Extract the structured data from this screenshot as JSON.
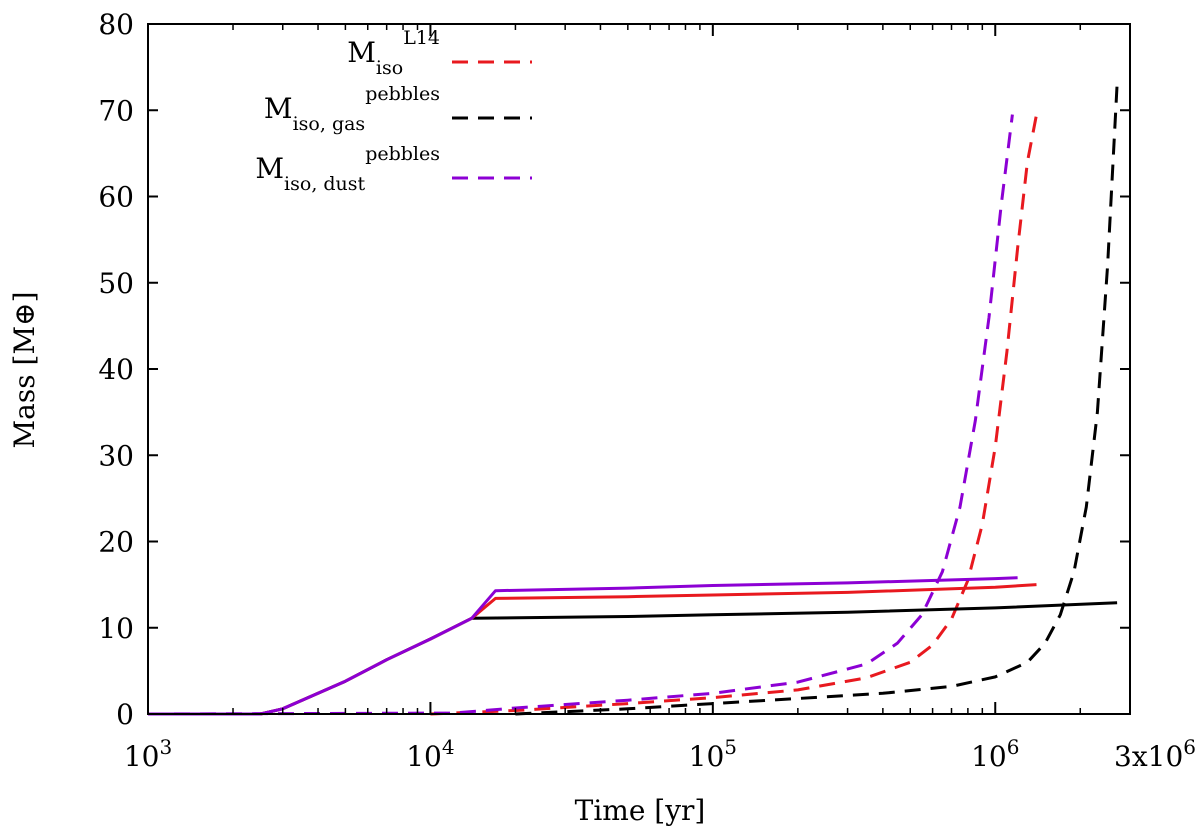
{
  "chart_data": {
    "type": "line",
    "xlabel": "Time [yr]",
    "ylabel": "Mass [M⊕]",
    "x_scale": "log",
    "xlim": [
      1000,
      3000000
    ],
    "ylim": [
      0,
      80
    ],
    "grid": false,
    "legend_position": "top-left",
    "x_ticks": [
      {
        "value": 1000,
        "base": "10",
        "exp": "3"
      },
      {
        "value": 10000,
        "base": "10",
        "exp": "4"
      },
      {
        "value": 100000,
        "base": "10",
        "exp": "5"
      },
      {
        "value": 1000000,
        "base": "10",
        "exp": "6"
      },
      {
        "value": 3000000,
        "base": "3x10",
        "exp": "6"
      }
    ],
    "y_ticks": [
      0,
      10,
      20,
      30,
      40,
      50,
      60,
      70,
      80
    ],
    "legend": [
      {
        "main": "M",
        "sub": "iso",
        "sup": "L14",
        "color": "#e8191f"
      },
      {
        "main": "M",
        "sub": "iso, gas",
        "sup": "pebbles",
        "color": "#000000"
      },
      {
        "main": "M",
        "sub": "iso, dust",
        "sup": "pebbles",
        "color": "#8c00d4"
      }
    ],
    "series": [
      {
        "name": "M_iso^L14",
        "style": "dashed",
        "color": "#e8191f",
        "x": [
          10000,
          20000,
          50000,
          100000,
          200000,
          350000,
          500000,
          600000,
          700000,
          800000,
          900000,
          1000000,
          1100000,
          1200000,
          1300000,
          1400000
        ],
        "y": [
          0.0,
          0.4,
          1.2,
          1.9,
          2.8,
          4.2,
          6.0,
          8.0,
          11.0,
          15.5,
          22.0,
          31.0,
          42.0,
          54.0,
          64.0,
          69.5
        ]
      },
      {
        "name": "M_iso,gas^pebbles",
        "style": "dashed",
        "color": "#000000",
        "x": [
          20000,
          50000,
          100000,
          200000,
          400000,
          700000,
          1000000,
          1300000,
          1500000,
          1700000,
          1900000,
          2100000,
          2300000,
          2500000,
          2700000
        ],
        "y": [
          0.0,
          0.6,
          1.2,
          1.8,
          2.4,
          3.2,
          4.3,
          6.0,
          8.2,
          11.5,
          16.5,
          24.0,
          35.0,
          52.0,
          73.0
        ]
      },
      {
        "name": "M_iso,dust^pebbles",
        "style": "dashed",
        "color": "#8c00d4",
        "x": [
          1000,
          12000,
          20000,
          50000,
          100000,
          200000,
          350000,
          450000,
          550000,
          650000,
          750000,
          850000,
          950000,
          1050000,
          1150000
        ],
        "y": [
          0.0,
          0.1,
          0.7,
          1.6,
          2.4,
          3.7,
          5.8,
          8.2,
          11.5,
          16.5,
          24.0,
          34.0,
          46.0,
          59.0,
          69.5
        ]
      },
      {
        "name": "",
        "style": "solid",
        "color": "#000000",
        "x": [
          1000,
          2500,
          3000,
          5000,
          7000,
          10000,
          14000,
          50000,
          100000,
          300000,
          1000000,
          2700000
        ],
        "y": [
          0.0,
          0.0,
          0.6,
          3.8,
          6.3,
          8.7,
          11.1,
          11.3,
          11.5,
          11.8,
          12.3,
          12.9
        ]
      },
      {
        "name": "",
        "style": "solid",
        "color": "#e8191f",
        "x": [
          1000,
          2500,
          3000,
          5000,
          7000,
          10000,
          14000,
          17000,
          50000,
          100000,
          300000,
          1000000,
          1400000
        ],
        "y": [
          0.0,
          0.0,
          0.6,
          3.8,
          6.3,
          8.7,
          11.1,
          13.4,
          13.6,
          13.8,
          14.1,
          14.7,
          15.0
        ]
      },
      {
        "name": "",
        "style": "solid",
        "color": "#8c00d4",
        "x": [
          1000,
          2500,
          3000,
          5000,
          7000,
          10000,
          14000,
          17000,
          50000,
          100000,
          300000,
          1000000,
          1200000
        ],
        "y": [
          0.0,
          0.0,
          0.6,
          3.8,
          6.3,
          8.7,
          11.1,
          14.3,
          14.6,
          14.9,
          15.2,
          15.7,
          15.8
        ]
      }
    ]
  }
}
